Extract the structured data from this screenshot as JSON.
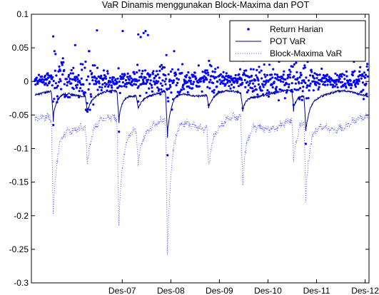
{
  "chart_data": {
    "type": "line",
    "title": "VaR Dinamis menggunakan Block-Maxima dan POT",
    "xlabel": "",
    "ylabel": "",
    "ylim": [
      -0.3,
      0.1
    ],
    "yticks": [
      0.1,
      0.05,
      0,
      -0.05,
      -0.1,
      -0.15,
      -0.2,
      -0.25,
      -0.3
    ],
    "ytick_labels": [
      "0.1",
      "0.05",
      "0",
      "-0.05",
      "-0.1",
      "-0.15",
      "-0.2",
      "-0.25",
      "-0.3"
    ],
    "xlim": [
      2006.05,
      2013.0
    ],
    "xticks": [
      2007.92,
      2008.92,
      2009.92,
      2010.92,
      2011.92,
      2012.92
    ],
    "xtick_labels": [
      "Des-07",
      "Des-08",
      "Des-09",
      "Des-10",
      "Des-11",
      "Des-12"
    ],
    "legend_position": "top-right",
    "series": [
      {
        "name": "Return Harian",
        "style": "dots",
        "color": "#0000ff"
      },
      {
        "name": "POT VaR",
        "style": "solid",
        "color": "#00008b"
      },
      {
        "name": "Block-Maxima VaR",
        "style": "dotted",
        "color": "#0000ff"
      }
    ],
    "data_summary": {
      "return_range": [
        -0.11,
        0.076
      ],
      "pot_var_range": [
        -0.084,
        -0.01
      ],
      "block_maxima_var_range": [
        -0.258,
        -0.045
      ],
      "stress_periods": [
        {
          "x": 2006.5,
          "return_min": -0.065,
          "pot_min": -0.06,
          "bm_min": -0.198
        },
        {
          "x": 2007.2,
          "return_min": -0.045,
          "pot_min": -0.045,
          "bm_min": -0.12
        },
        {
          "x": 2007.85,
          "return_min": -0.075,
          "pot_min": -0.062,
          "bm_min": -0.215
        },
        {
          "x": 2008.25,
          "return_min": -0.03,
          "pot_min": -0.04,
          "bm_min": -0.11
        },
        {
          "x": 2008.85,
          "return_min": -0.11,
          "pot_min": -0.084,
          "bm_min": -0.258
        },
        {
          "x": 2009.7,
          "return_min": -0.035,
          "pot_min": -0.04,
          "bm_min": -0.115
        },
        {
          "x": 2010.4,
          "return_min": -0.04,
          "pot_min": -0.045,
          "bm_min": -0.155
        },
        {
          "x": 2011.45,
          "return_min": -0.035,
          "pot_min": -0.045,
          "bm_min": -0.12
        },
        {
          "x": 2011.7,
          "return_min": -0.093,
          "pot_min": -0.074,
          "bm_min": -0.18
        }
      ],
      "return_outliers_positive": [
        {
          "x": 2006.5,
          "y": 0.067
        },
        {
          "x": 2006.95,
          "y": 0.054
        },
        {
          "x": 2007.4,
          "y": 0.076
        },
        {
          "x": 2007.93,
          "y": 0.075
        },
        {
          "x": 2008.25,
          "y": 0.07
        },
        {
          "x": 2008.3,
          "y": 0.066
        },
        {
          "x": 2008.4,
          "y": 0.075
        },
        {
          "x": 2008.45,
          "y": 0.069
        },
        {
          "x": 2008.36,
          "y": 0.072
        }
      ]
    }
  }
}
